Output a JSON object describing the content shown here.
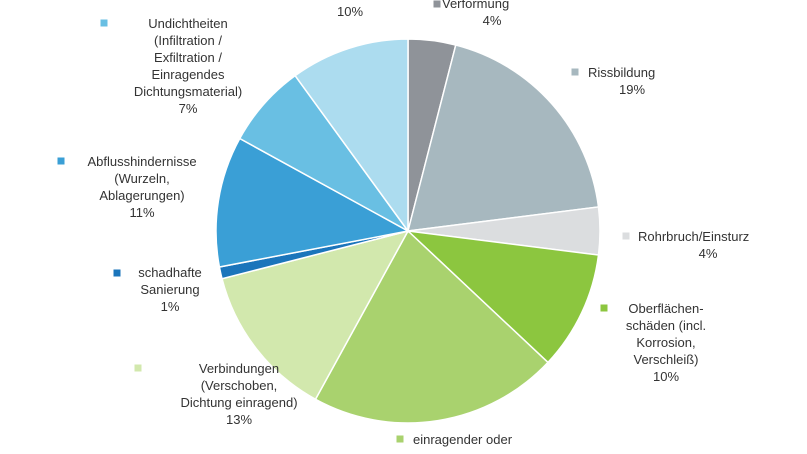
{
  "chart_data": {
    "type": "pie",
    "title": "",
    "slices": [
      {
        "label": [
          "Verformung"
        ],
        "pct": "4%",
        "value": 4,
        "color": "#8f9399"
      },
      {
        "label": [
          "Rissbildung"
        ],
        "pct": "19%",
        "value": 19,
        "color": "#a7b8bf"
      },
      {
        "label": [
          "Rohrbruch/Einsturz"
        ],
        "pct": "4%",
        "value": 4,
        "color": "#dbdddf"
      },
      {
        "label": [
          "Oberflächen-",
          "schäden (incl.",
          "Korrosion,",
          "Verschleiß)"
        ],
        "pct": "10%",
        "value": 10,
        "color": "#8cc63f"
      },
      {
        "label": [
          "einragender oder"
        ],
        "pct": "",
        "value": 21,
        "color": "#a9d26e"
      },
      {
        "label": [
          "Verbindungen",
          "(Verschoben,",
          "Dichtung einragend)"
        ],
        "pct": "13%",
        "value": 13,
        "color": "#d2e8ad"
      },
      {
        "label": [
          "schadhafte",
          "Sanierung"
        ],
        "pct": "1%",
        "value": 1,
        "color": "#1b75bb"
      },
      {
        "label": [
          "Abflusshindernisse",
          "(Wurzeln,",
          "Ablagerungen)"
        ],
        "pct": "11%",
        "value": 11,
        "color": "#3a9fd6"
      },
      {
        "label": [
          "Undichtheiten",
          "(Infiltration /",
          "Exfiltration /",
          "Einragendes",
          "Dichtungsmaterial)"
        ],
        "pct": "7%",
        "value": 7,
        "color": "#69bfe3"
      },
      {
        "label": [],
        "pct": "10%",
        "value": 10,
        "color": "#acdcef"
      }
    ]
  }
}
